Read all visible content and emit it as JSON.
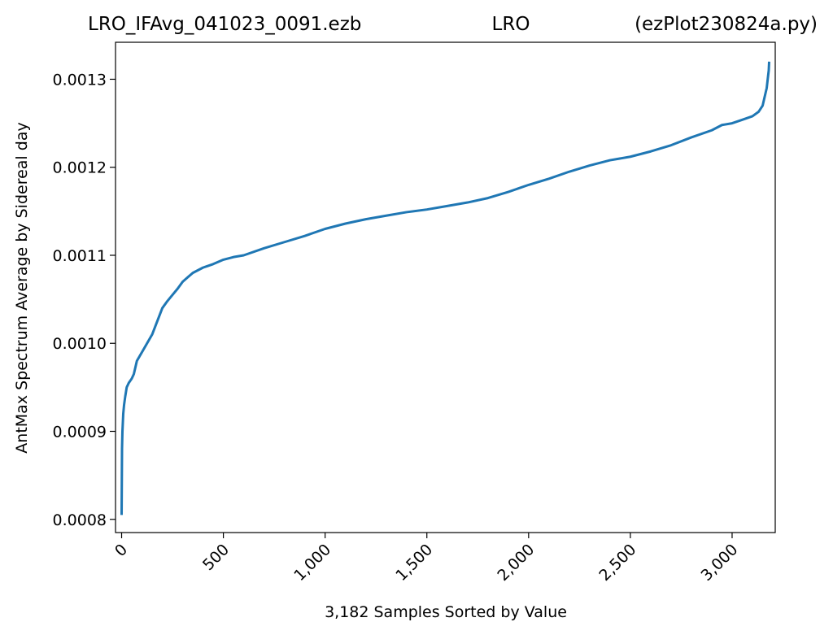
{
  "title": {
    "left": "LRO_IFAvg_041023_0091.ezb",
    "center": "LRO",
    "right": "(ezPlot230824a.py)"
  },
  "chart_data": {
    "type": "line",
    "xlabel": "3,182 Samples Sorted by Value",
    "ylabel": "AntMax Spectrum Average by Sidereal day",
    "xlim": [
      -30,
      3212
    ],
    "ylim": [
      0.000785,
      0.001342
    ],
    "xticks": [
      {
        "value": 0,
        "label": "0"
      },
      {
        "value": 500,
        "label": "500"
      },
      {
        "value": 1000,
        "label": "1,000"
      },
      {
        "value": 1500,
        "label": "1,500"
      },
      {
        "value": 2000,
        "label": "2,000"
      },
      {
        "value": 2500,
        "label": "2,500"
      },
      {
        "value": 3000,
        "label": "3,000"
      }
    ],
    "yticks": [
      {
        "value": 0.0008,
        "label": "0.0008"
      },
      {
        "value": 0.0009,
        "label": "0.0009"
      },
      {
        "value": 0.001,
        "label": "0.0010"
      },
      {
        "value": 0.0011,
        "label": "0.0011"
      },
      {
        "value": 0.0012,
        "label": "0.0012"
      },
      {
        "value": 0.0013,
        "label": "0.0013"
      }
    ],
    "grid": false,
    "series": [
      {
        "color": "#1f77b4",
        "x": [
          0,
          2,
          4,
          8,
          12,
          18,
          25,
          35,
          50,
          60,
          75,
          100,
          125,
          150,
          175,
          200,
          225,
          250,
          275,
          300,
          325,
          350,
          375,
          400,
          450,
          500,
          550,
          600,
          700,
          800,
          900,
          1000,
          1100,
          1200,
          1300,
          1400,
          1500,
          1600,
          1700,
          1800,
          1900,
          2000,
          2100,
          2200,
          2300,
          2400,
          2500,
          2600,
          2700,
          2800,
          2900,
          2950,
          3000,
          3050,
          3100,
          3130,
          3150,
          3160,
          3170,
          3175,
          3180,
          3182
        ],
        "y": [
          0.000805,
          0.00088,
          0.0009,
          0.00092,
          0.00093,
          0.00094,
          0.00095,
          0.000955,
          0.00096,
          0.000965,
          0.00098,
          0.00099,
          0.001,
          0.00101,
          0.001025,
          0.00104,
          0.001048,
          0.001055,
          0.001062,
          0.00107,
          0.001075,
          0.00108,
          0.001083,
          0.001086,
          0.00109,
          0.001095,
          0.001098,
          0.0011,
          0.001108,
          0.001115,
          0.001122,
          0.00113,
          0.001136,
          0.001141,
          0.001145,
          0.001149,
          0.001152,
          0.001156,
          0.00116,
          0.001165,
          0.001172,
          0.00118,
          0.001187,
          0.001195,
          0.001202,
          0.001208,
          0.001212,
          0.001218,
          0.001225,
          0.001234,
          0.001242,
          0.001248,
          0.00125,
          0.001254,
          0.001258,
          0.001263,
          0.00127,
          0.00128,
          0.00129,
          0.0013,
          0.00131,
          0.00132
        ]
      }
    ]
  }
}
